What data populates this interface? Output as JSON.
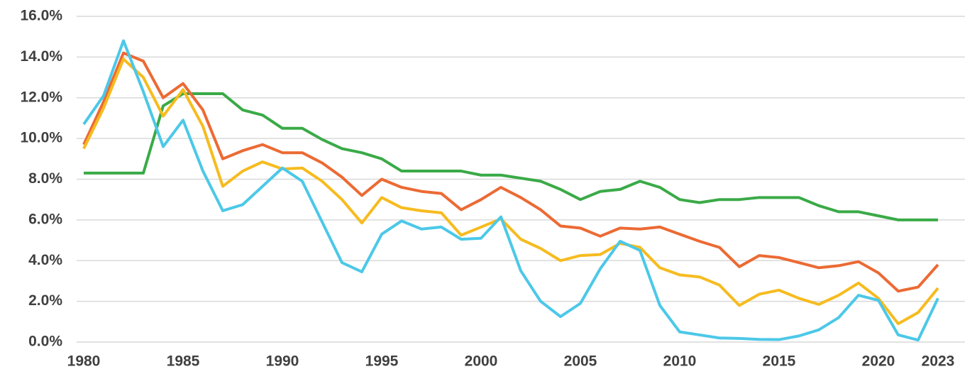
{
  "chart_data": {
    "type": "line",
    "x": [
      1980,
      1981,
      1982,
      1983,
      1984,
      1985,
      1986,
      1987,
      1988,
      1989,
      1990,
      1991,
      1992,
      1993,
      1994,
      1995,
      1996,
      1997,
      1998,
      1999,
      2000,
      2001,
      2002,
      2003,
      2004,
      2005,
      2006,
      2007,
      2008,
      2009,
      2010,
      2011,
      2012,
      2013,
      2014,
      2015,
      2016,
      2017,
      2018,
      2019,
      2020,
      2021,
      2022,
      2023
    ],
    "series": [
      {
        "color": "#3aaa47",
        "values": [
          8.3,
          8.3,
          8.3,
          8.3,
          11.6,
          12.2,
          12.2,
          12.2,
          11.4,
          11.15,
          10.5,
          10.5,
          9.95,
          9.5,
          9.3,
          9.0,
          8.4,
          8.4,
          8.4,
          8.4,
          8.2,
          8.2,
          8.05,
          7.9,
          7.5,
          7.0,
          7.4,
          7.5,
          7.9,
          7.6,
          7.0,
          6.85,
          7.0,
          7.0,
          7.1,
          7.1,
          7.1,
          6.7,
          6.4,
          6.4,
          6.2,
          6.0,
          6.0,
          6.0
        ]
      },
      {
        "color": "#ec6a34",
        "values": [
          9.7,
          11.8,
          14.2,
          13.8,
          12.0,
          12.7,
          11.4,
          9.0,
          9.4,
          9.7,
          9.3,
          9.3,
          8.8,
          8.1,
          7.2,
          8.0,
          7.6,
          7.4,
          7.3,
          6.5,
          7.0,
          7.6,
          7.1,
          6.5,
          5.7,
          5.6,
          5.2,
          5.6,
          5.55,
          5.65,
          5.3,
          4.95,
          4.65,
          3.7,
          4.25,
          4.15,
          3.9,
          3.65,
          3.75,
          3.95,
          3.4,
          2.5,
          2.7,
          3.8
        ]
      },
      {
        "color": "#f6bb1f",
        "values": [
          9.5,
          11.5,
          13.9,
          13.0,
          11.1,
          12.4,
          10.6,
          7.65,
          8.4,
          8.85,
          8.5,
          8.55,
          7.9,
          7.0,
          5.85,
          7.1,
          6.6,
          6.45,
          6.35,
          5.25,
          5.65,
          6.05,
          5.05,
          4.6,
          4.0,
          4.25,
          4.3,
          4.85,
          4.65,
          3.65,
          3.3,
          3.2,
          2.8,
          1.8,
          2.35,
          2.55,
          2.15,
          1.85,
          2.3,
          2.9,
          2.15,
          0.9,
          1.45,
          2.65
        ]
      },
      {
        "color": "#4cc8e8",
        "values": [
          10.7,
          12.1,
          14.8,
          12.3,
          9.6,
          10.9,
          8.4,
          6.45,
          6.75,
          7.65,
          8.55,
          7.9,
          5.9,
          3.9,
          3.45,
          5.3,
          5.95,
          5.55,
          5.65,
          5.05,
          5.1,
          6.15,
          3.5,
          2.0,
          1.25,
          1.9,
          3.6,
          4.95,
          4.5,
          1.8,
          0.5,
          0.35,
          0.2,
          0.18,
          0.13,
          0.12,
          0.3,
          0.6,
          1.2,
          2.3,
          2.05,
          0.35,
          0.1,
          2.15
        ]
      }
    ],
    "xlim": [
      1980,
      2023
    ],
    "xticks": [
      1980,
      1985,
      1990,
      1995,
      2000,
      2005,
      2010,
      2015,
      2020,
      2023
    ],
    "ylim": [
      0,
      16
    ],
    "yticks": [
      {
        "value": 0,
        "label": "0.0%"
      },
      {
        "value": 2,
        "label": "2.0%"
      },
      {
        "value": 4,
        "label": "4.0%"
      },
      {
        "value": 6,
        "label": "6.0%"
      },
      {
        "value": 8,
        "label": "8.0%"
      },
      {
        "value": 10,
        "label": "10.0%"
      },
      {
        "value": 12,
        "label": "12.0%"
      },
      {
        "value": 14,
        "label": "14.0%"
      },
      {
        "value": 16,
        "label": "16.0%"
      }
    ],
    "grid": true
  }
}
